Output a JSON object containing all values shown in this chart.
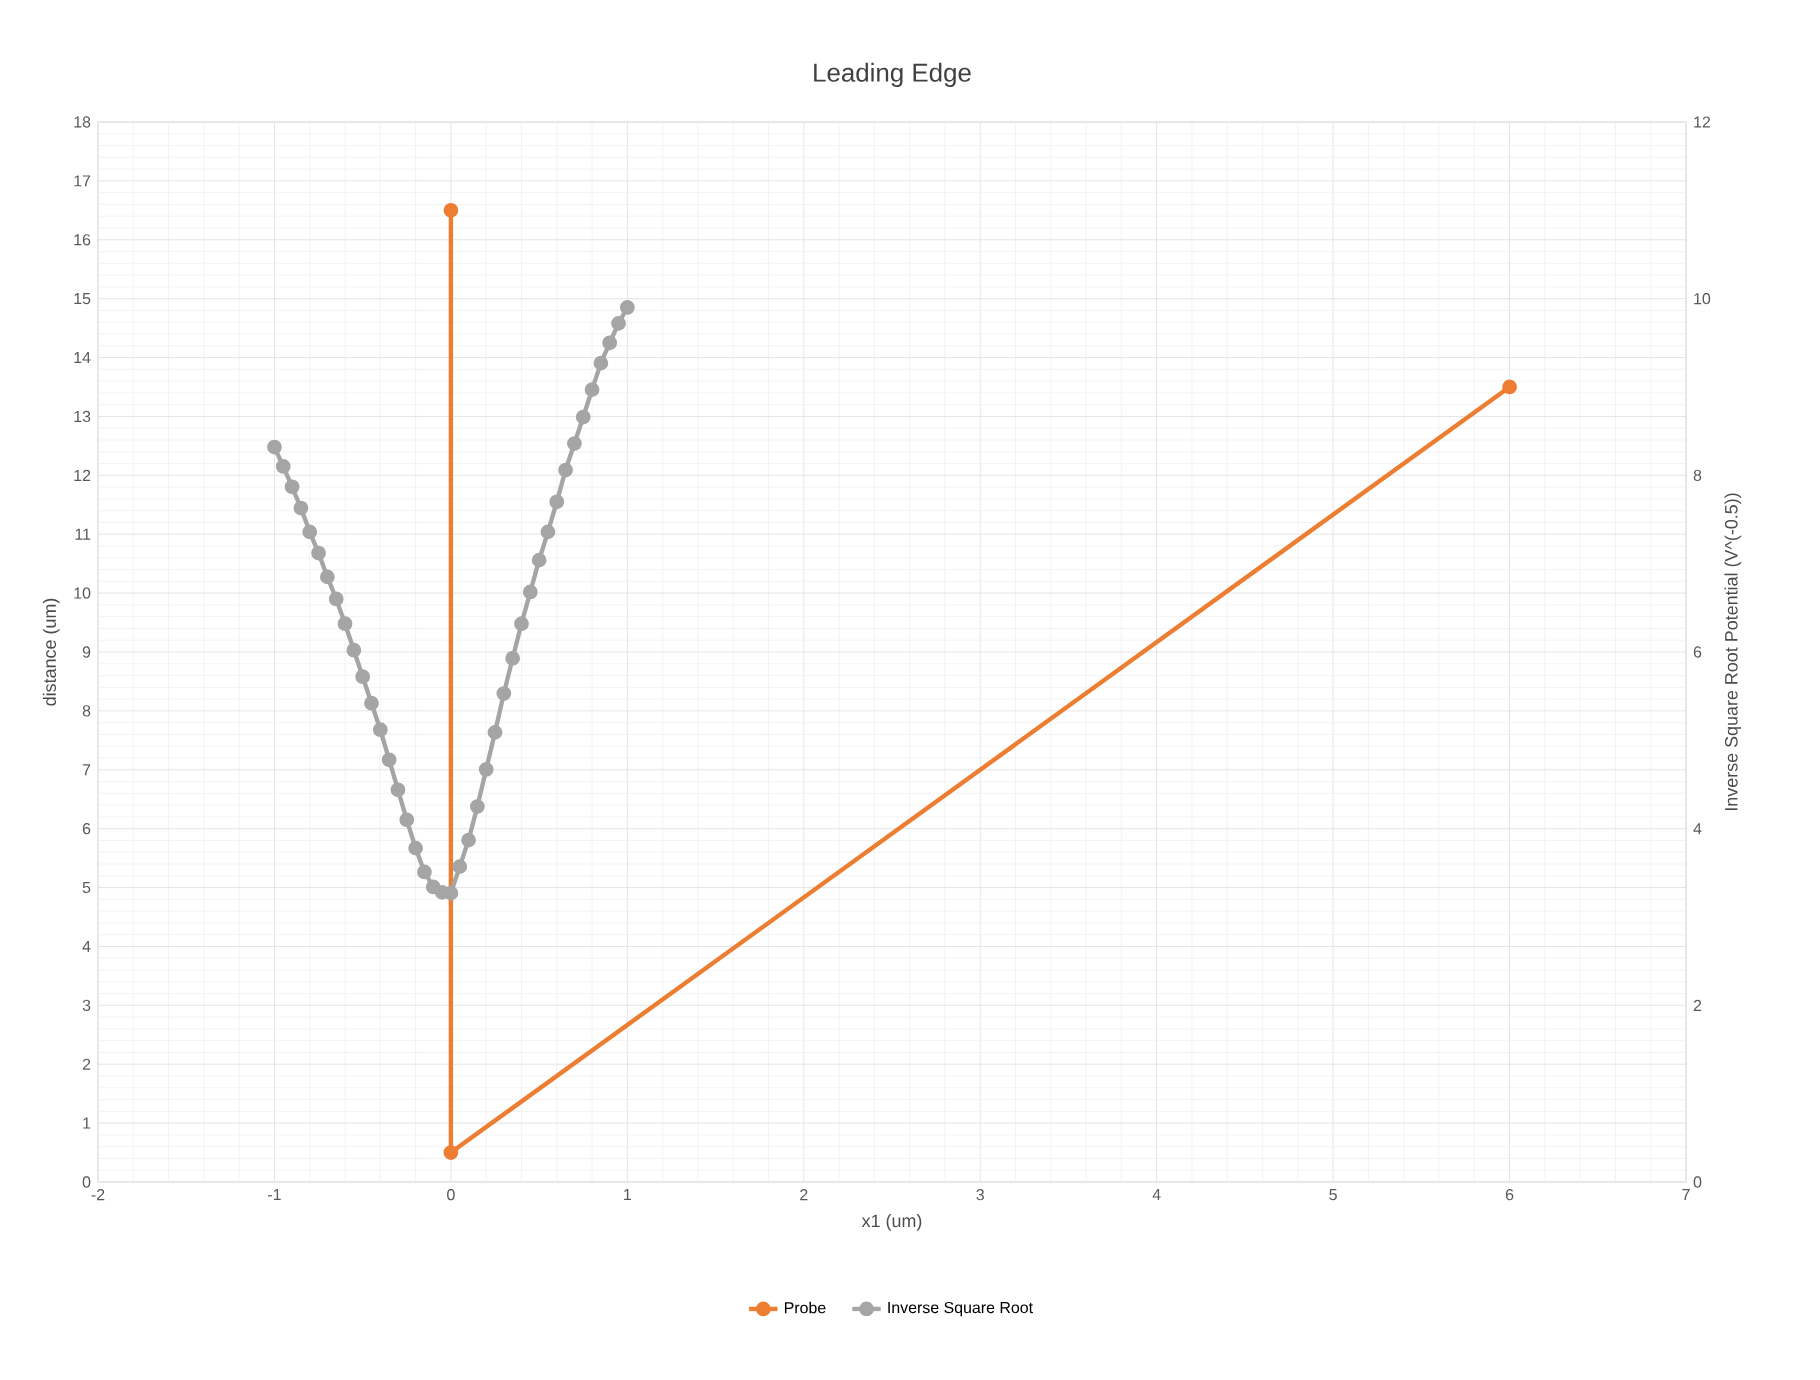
{
  "chart_data": {
    "type": "line",
    "title": "Leading Edge",
    "xlabel": "x1 (um)",
    "ylabel": "distance (um)",
    "y2label": "Inverse Square Root Potential (V^(-0.5))",
    "xlim": [
      -2,
      7
    ],
    "xticks": [
      -2,
      -1,
      0,
      1,
      2,
      3,
      4,
      5,
      6,
      7
    ],
    "ylim": [
      0,
      18
    ],
    "yticks": [
      0,
      1,
      2,
      3,
      4,
      5,
      6,
      7,
      8,
      9,
      10,
      11,
      12,
      13,
      14,
      15,
      16,
      17,
      18
    ],
    "y2lim": [
      0,
      12
    ],
    "y2ticks": [
      0,
      2,
      4,
      6,
      8,
      10,
      12
    ],
    "grid": true,
    "legend": "bottom",
    "marker": "circle",
    "line_style": "solid",
    "series": [
      {
        "name": "Probe",
        "color": "#ed7d31",
        "x": [
          0,
          0,
          6
        ],
        "values": [
          16.5,
          0.5,
          13.5
        ]
      },
      {
        "name": "Inverse Square Root",
        "color": "#a5a5a5",
        "axis": "y2",
        "x": [
          -1,
          -0.95,
          -0.9,
          -0.85,
          -0.8,
          -0.75,
          -0.7,
          -0.65,
          -0.6,
          -0.55,
          -0.5,
          -0.45,
          -0.4,
          -0.35,
          -0.3,
          -0.25,
          -0.2,
          -0.15,
          -0.1,
          -0.05,
          0,
          0.05,
          0.1,
          0.15,
          0.2,
          0.25,
          0.3,
          0.35,
          0.4,
          0.45,
          0.5,
          0.55,
          0.6,
          0.65,
          0.7,
          0.75,
          0.8,
          0.85,
          0.9,
          0.95,
          1
        ],
        "values": [
          8.32,
          8.1,
          7.87,
          7.63,
          7.36,
          7.12,
          6.85,
          6.6,
          6.32,
          6.02,
          5.72,
          5.42,
          5.12,
          4.78,
          4.44,
          4.1,
          3.78,
          3.51,
          3.34,
          3.28,
          3.27,
          3.57,
          3.87,
          4.25,
          4.67,
          5.09,
          5.53,
          5.93,
          6.32,
          6.68,
          7.04,
          7.36,
          7.7,
          8.06,
          8.36,
          8.66,
          8.97,
          9.27,
          9.5,
          9.72,
          9.9
        ]
      }
    ]
  }
}
